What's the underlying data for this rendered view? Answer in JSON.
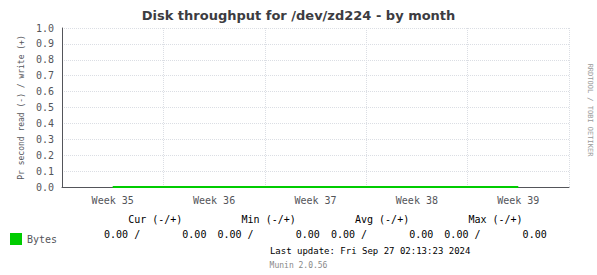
{
  "chart_data": {
    "type": "line",
    "title": "Disk throughput for /dev/zd224 - by month",
    "ylabel": "Pr second read (-) / write (+)",
    "categories": [
      "Week 35",
      "Week 36",
      "Week 37",
      "Week 38",
      "Week 39"
    ],
    "series": [
      {
        "name": "Bytes",
        "color": "#00cc00",
        "values": [
          0,
          0,
          0,
          0,
          0
        ]
      }
    ],
    "ylim": [
      0,
      1
    ],
    "yticks": [
      {
        "value": 0,
        "label": "0.0"
      },
      0.1,
      0.2,
      0.3,
      0.4,
      0.5,
      0.6,
      0.7,
      0.8,
      0.9,
      {
        "value": 1,
        "label": "1.0"
      }
    ],
    "grid": true,
    "legend": "bottom-left",
    "annotations": [
      [
        "Cur (-/+)",
        "0.00 /       0.00"
      ],
      [
        "Min (-/+)",
        "0.00 /       0.00"
      ],
      [
        "Avg (-/+)",
        "0.00 /       0.00"
      ],
      [
        "Max (-/+)",
        "0.00 /       0.00"
      ],
      "Last update: Fri Sep 27 02:13:23 2024",
      "Munin 2.0.56",
      "RRDTOOL / TOBI OETIKER"
    ]
  }
}
